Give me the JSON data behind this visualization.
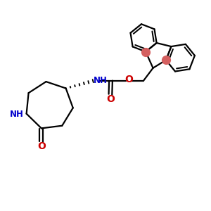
{
  "background": "#ffffff",
  "bond_color": "#000000",
  "nh_color": "#0000cc",
  "o_color": "#cc0000",
  "stereo_dot_color": "#d45f5f",
  "line_width": 1.6,
  "fig_size": [
    3.0,
    3.0
  ],
  "dpi": 100,
  "xlim": [
    0,
    10
  ],
  "ylim": [
    0,
    10
  ]
}
